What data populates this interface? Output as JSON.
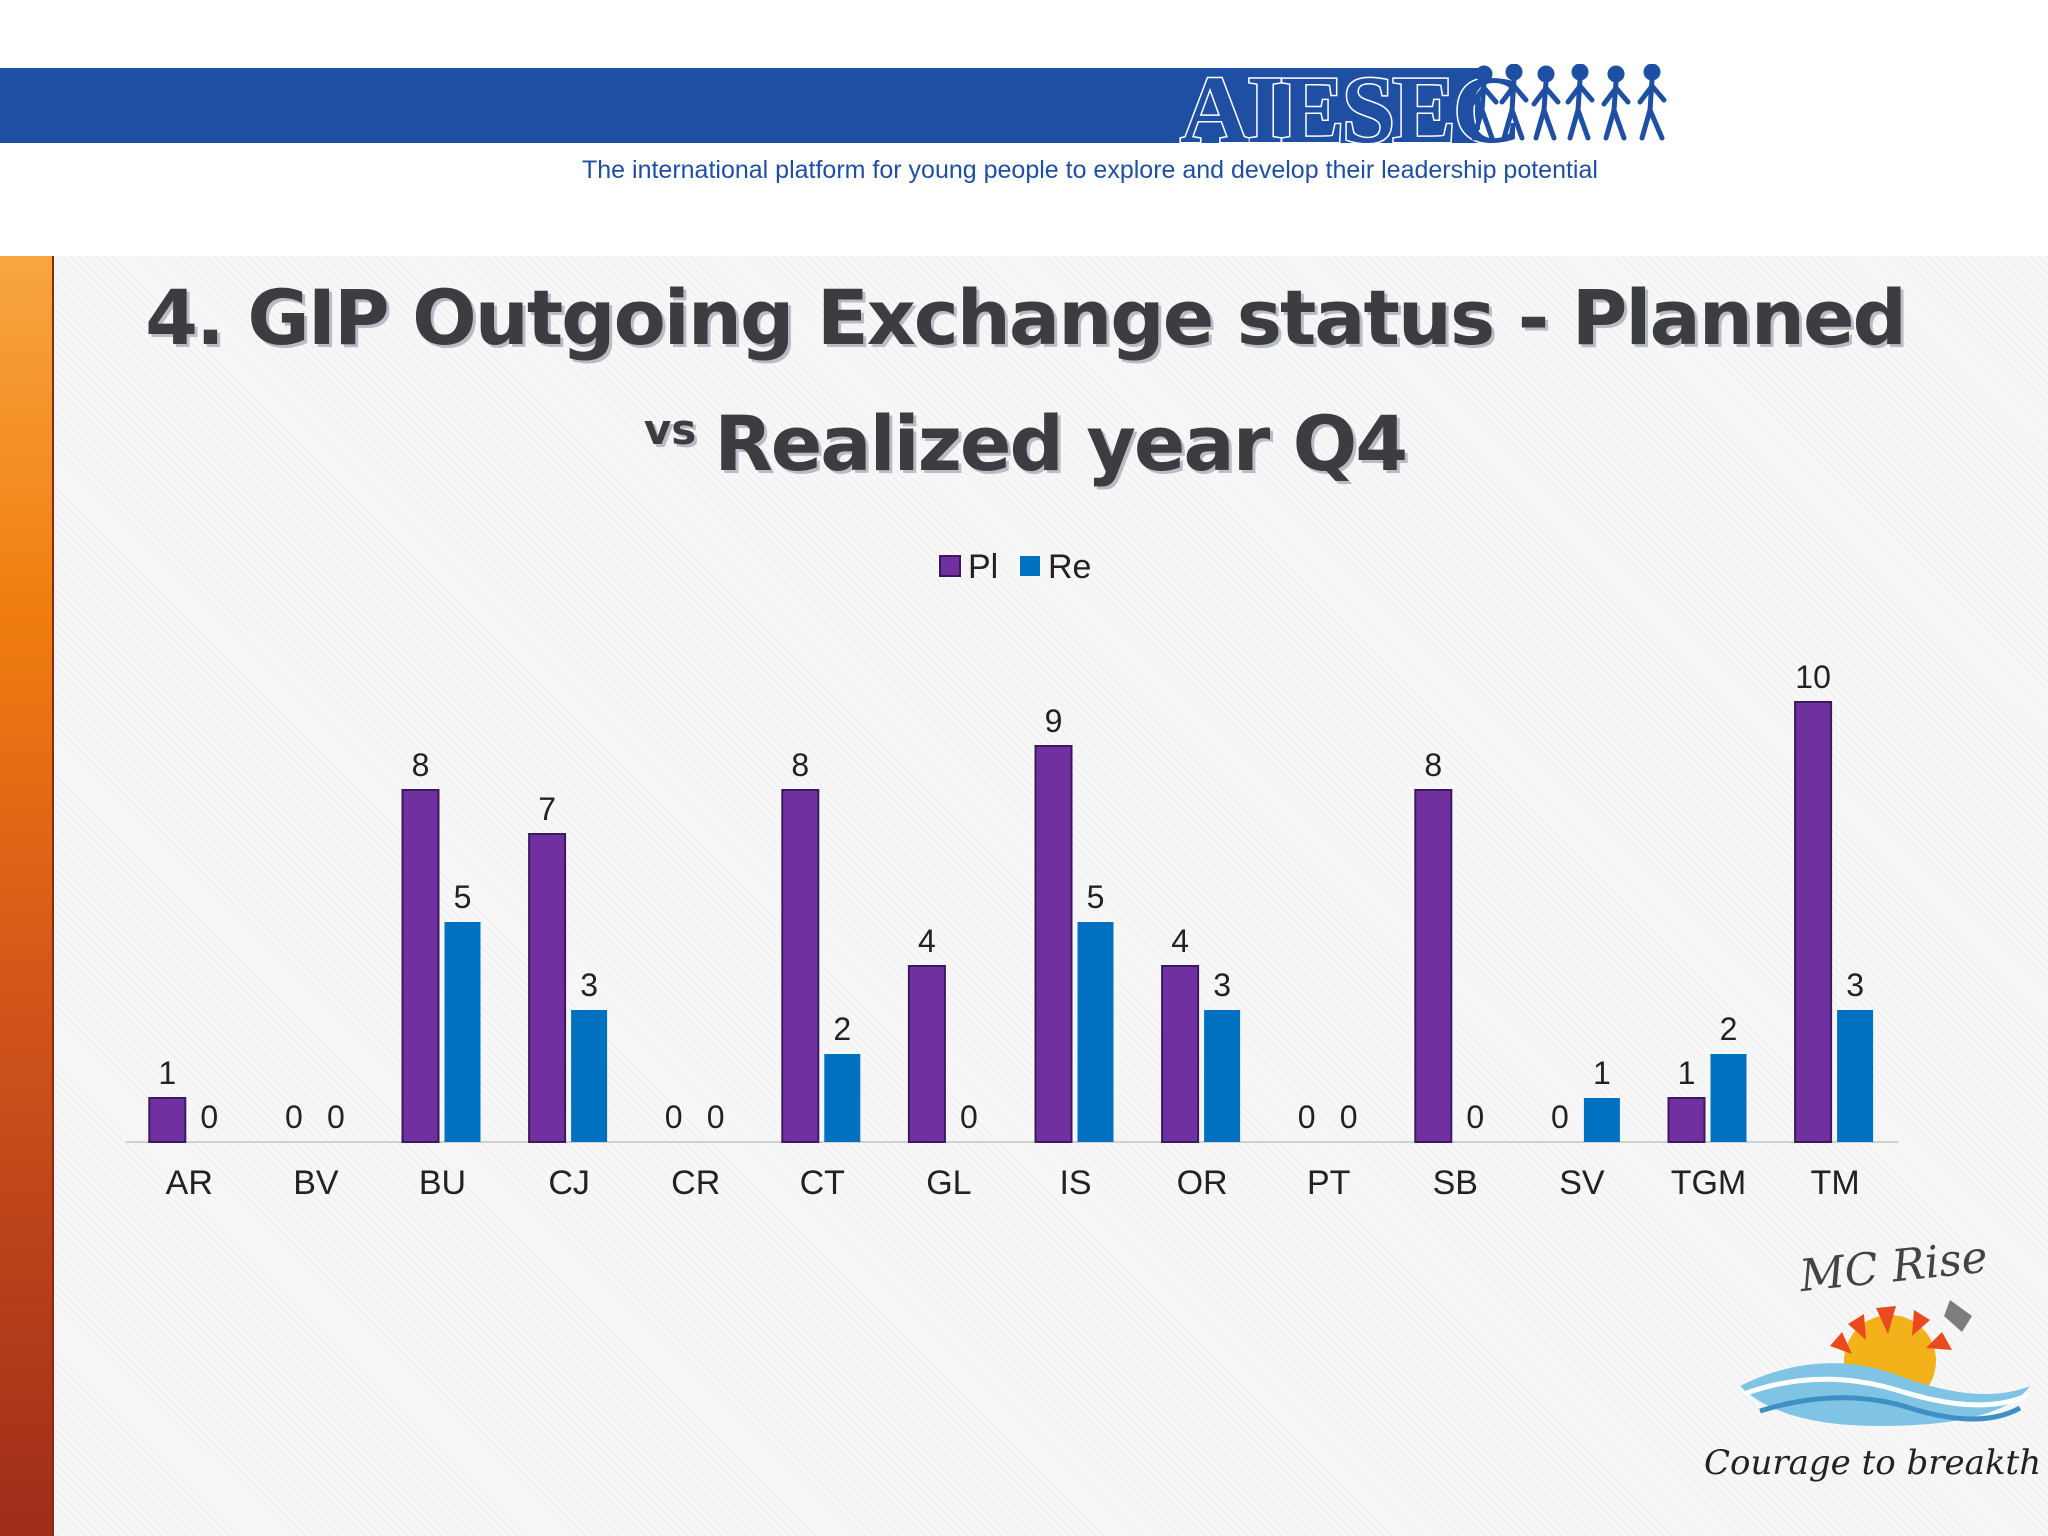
{
  "header": {
    "brand": "AIESEC",
    "tagline": "The international platform for young people to explore and develop their leadership potential",
    "brand_color": "#1f4fa3"
  },
  "slide": {
    "title_line1": "4. GIP Outgoing Exchange status - Planned",
    "title_vs": "vs",
    "title_line2": "Realized year Q4"
  },
  "badge": {
    "name": "MC Rise",
    "slogan": "Courage to breakthrough"
  },
  "chart_data": {
    "type": "bar",
    "categories": [
      "AR",
      "BV",
      "BU",
      "CJ",
      "CR",
      "CT",
      "GL",
      "IS",
      "OR",
      "PT",
      "SB",
      "SV",
      "TGM",
      "TM"
    ],
    "series": [
      {
        "name": "Pl",
        "color": "#7030a0",
        "values": [
          1,
          0,
          8,
          7,
          0,
          8,
          4,
          9,
          4,
          0,
          8,
          0,
          1,
          10
        ]
      },
      {
        "name": "Re",
        "color": "#0070c0",
        "values": [
          0,
          0,
          5,
          3,
          0,
          2,
          0,
          5,
          3,
          0,
          0,
          1,
          2,
          3
        ]
      }
    ],
    "data_labels": true,
    "legend_position": "top",
    "grid": false,
    "ylim": [
      0,
      10
    ]
  }
}
